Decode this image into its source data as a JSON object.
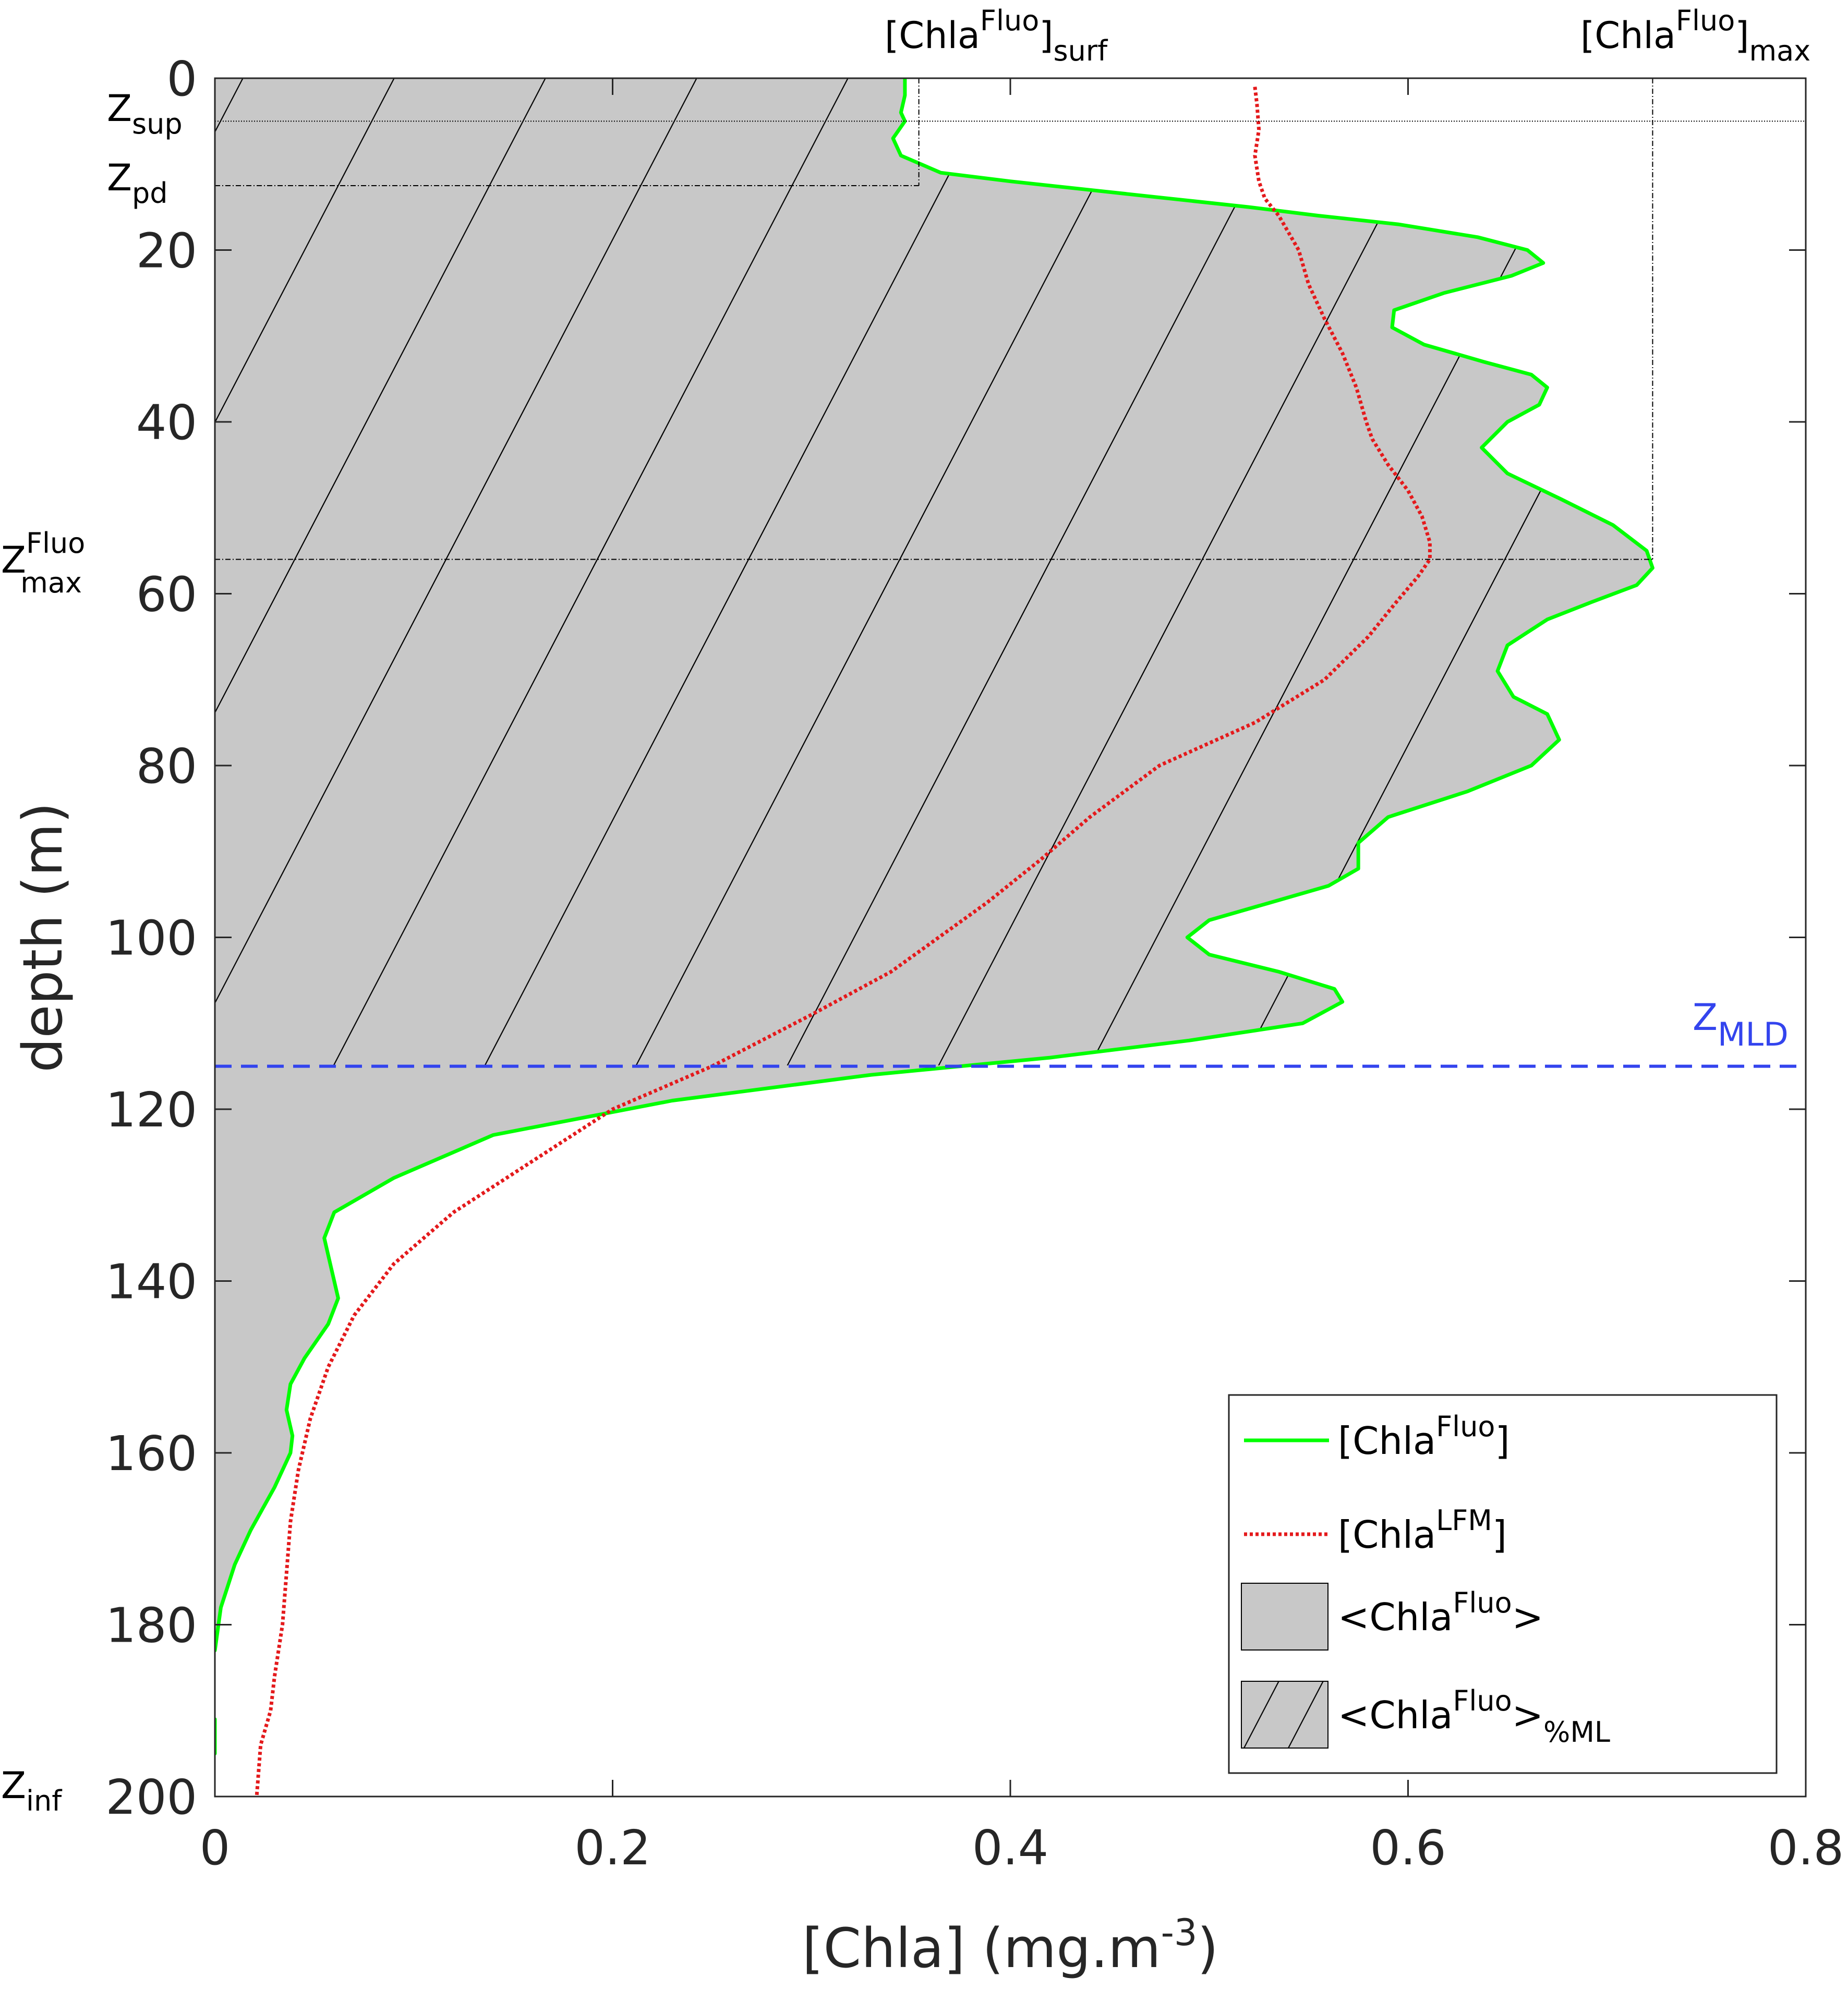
{
  "chart_data": {
    "type": "line",
    "xlabel_main": "[Chla] (mg.m",
    "xlabel_sup": "-3",
    "xlabel_end": ")",
    "ylabel": "depth (m)",
    "xlim": [
      0,
      0.8
    ],
    "ylim": [
      0,
      200
    ],
    "y_reversed": true,
    "xticks": [
      0,
      0.2,
      0.4,
      0.6,
      0.8
    ],
    "xtick_labels": [
      "0",
      "0.2",
      "0.4",
      "0.6",
      "0.8"
    ],
    "yticks": [
      0,
      20,
      40,
      60,
      80,
      100,
      120,
      140,
      160,
      180,
      200
    ],
    "ytick_labels": [
      "0",
      "20",
      "40",
      "60",
      "80",
      "100",
      "120",
      "140",
      "160",
      "180",
      "200"
    ],
    "grid": false,
    "legend_position": "bottom-right",
    "colors": {
      "fluo": "#00ff00",
      "lfm": "#e41a1c",
      "mld": "#3344ee",
      "fill": "#c8c8c8",
      "axis": "#262626"
    },
    "series": [
      {
        "name": "fluo",
        "style": "solid",
        "x": [
          0.347,
          0.347,
          0.345,
          0.347,
          0.341,
          0.345,
          0.365,
          0.4,
          0.44,
          0.48,
          0.52,
          0.555,
          0.595,
          0.635,
          0.66,
          0.668,
          0.652,
          0.618,
          0.593,
          0.592,
          0.608,
          0.638,
          0.662,
          0.67,
          0.666,
          0.65,
          0.637,
          0.65,
          0.677,
          0.703,
          0.72,
          0.723,
          0.715,
          0.692,
          0.67,
          0.65,
          0.645,
          0.653,
          0.67,
          0.676,
          0.662,
          0.63,
          0.59,
          0.575,
          0.575,
          0.56,
          0.53,
          0.5,
          0.489,
          0.5,
          0.535,
          0.563,
          0.567,
          0.547,
          0.49,
          0.42,
          0.33,
          0.23,
          0.14,
          0.09,
          0.06,
          0.055,
          0.058,
          0.062,
          0.057,
          0.045,
          0.038,
          0.036,
          0.039,
          0.038,
          0.03,
          0.018,
          0.01,
          0.003,
          0.0
        ],
        "y": [
          0,
          2,
          4,
          5,
          7,
          9,
          11,
          12,
          13,
          14,
          15,
          16,
          17,
          18.5,
          20,
          21.5,
          23,
          25,
          27,
          29,
          31,
          33,
          34.5,
          36,
          38,
          40,
          43,
          46,
          49,
          52,
          55,
          57,
          59,
          61,
          63,
          66,
          69,
          72,
          74,
          77,
          80,
          83,
          86,
          89,
          92,
          94,
          96,
          98,
          100,
          102,
          104,
          106,
          107.5,
          110,
          112,
          114,
          116,
          119,
          123,
          128,
          132,
          135,
          138,
          142,
          145,
          149,
          152,
          155,
          158,
          160,
          164,
          169,
          173,
          178,
          183
        ]
      },
      {
        "name": "fluo-deep-segment",
        "style": "solid",
        "x": [
          0.0,
          0.0
        ],
        "y": [
          191,
          195
        ]
      },
      {
        "name": "lfm",
        "style": "dotted",
        "x": [
          0.523,
          0.524,
          0.525,
          0.523,
          0.525,
          0.528,
          0.535,
          0.545,
          0.55,
          0.558,
          0.567,
          0.574,
          0.579,
          0.582,
          0.59,
          0.6,
          0.607,
          0.611,
          0.611,
          0.605,
          0.594,
          0.58,
          0.558,
          0.523,
          0.475,
          0.44,
          0.415,
          0.388,
          0.34,
          0.3,
          0.25,
          0.2,
          0.16,
          0.12,
          0.09,
          0.07,
          0.057,
          0.048,
          0.042,
          0.038,
          0.036,
          0.034,
          0.03,
          0.028,
          0.023,
          0.021
        ],
        "y": [
          1,
          3,
          6,
          9,
          12,
          14,
          16,
          20,
          24,
          28,
          32,
          36,
          40,
          42,
          45,
          48,
          51,
          54,
          56,
          58,
          61,
          65,
          70,
          75,
          80,
          86,
          91,
          96,
          104,
          109,
          115,
          120,
          126,
          132,
          138,
          144,
          150,
          156,
          162,
          168,
          174,
          180,
          186,
          190,
          194,
          200
        ]
      }
    ],
    "mld_depth": 115,
    "annotations": {
      "z_sup": 5,
      "z_pd": 12.5,
      "z_max": 56,
      "z_inf": 200,
      "chla_surf": 0.354,
      "chla_max": 0.723
    },
    "labels": {
      "z_sup_base": "Z",
      "z_sup_sub": "sup",
      "z_pd_base": "Z",
      "z_pd_sub": "pd",
      "z_max_base": "Z",
      "z_max_sup": "Fluo",
      "z_max_sub": "max",
      "z_inf_base": "Z",
      "z_inf_sub": "inf",
      "mld_base": "Z",
      "mld_sub": "MLD",
      "surf_open": "[Chla",
      "surf_sup": "Fluo",
      "surf_close": "]",
      "surf_sub": "surf",
      "max_open": "[Chla",
      "max_sup": "Fluo",
      "max_close": "]",
      "max_sub": "max"
    },
    "legend": [
      {
        "key": "fluo",
        "main": "[Chla",
        "sup": "Fluo",
        "end": "]",
        "sub": ""
      },
      {
        "key": "lfm",
        "main": "[Chla",
        "sup": "LFM",
        "end": "]",
        "sub": ""
      },
      {
        "key": "fill",
        "main": "<Chla",
        "sup": "Fluo",
        "end": ">",
        "sub": ""
      },
      {
        "key": "hatch",
        "main": "<Chla",
        "sup": "Fluo",
        "end": ">",
        "sub": "%ML"
      }
    ]
  }
}
